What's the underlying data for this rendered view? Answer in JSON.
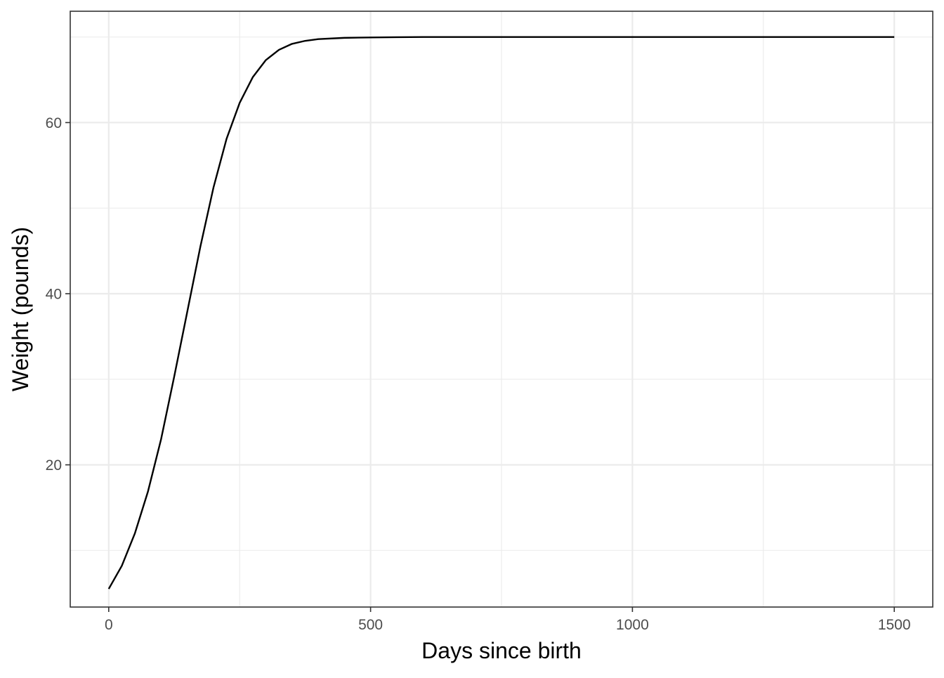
{
  "chart_data": {
    "type": "line",
    "title": "",
    "xlabel": "Days since birth",
    "ylabel": "Weight (pounds)",
    "xlim": [
      -73.5,
      1573.5
    ],
    "ylim": [
      3.38,
      73.01
    ],
    "x_ticks": [
      0,
      500,
      1000,
      1500
    ],
    "x_tick_labels": [
      "0",
      "500",
      "1000",
      "1500"
    ],
    "x_minor_ticks": [
      250,
      750,
      1250
    ],
    "y_ticks": [
      20,
      40,
      60
    ],
    "y_tick_labels": [
      "20",
      "40",
      "60"
    ],
    "y_minor_ticks": [
      10,
      30,
      50,
      70
    ],
    "grid": true,
    "legend": "none",
    "series": [
      {
        "color": "#000000",
        "x": [
          0,
          25,
          50,
          75,
          100,
          125,
          150,
          175,
          200,
          225,
          250,
          275,
          300,
          325,
          350,
          375,
          400,
          450,
          500,
          550,
          600,
          700,
          800,
          900,
          1000,
          1100,
          1200,
          1300,
          1400,
          1500
        ],
        "y": [
          5.5,
          8.2,
          12.0,
          16.9,
          23.0,
          30.3,
          37.9,
          45.5,
          52.4,
          58.1,
          62.3,
          65.3,
          67.3,
          68.5,
          69.2,
          69.55,
          69.75,
          69.9,
          69.95,
          69.98,
          70.0,
          70.0,
          70.0,
          70.0,
          70.0,
          70.0,
          70.0,
          70.0,
          70.0,
          70.0
        ]
      }
    ]
  }
}
